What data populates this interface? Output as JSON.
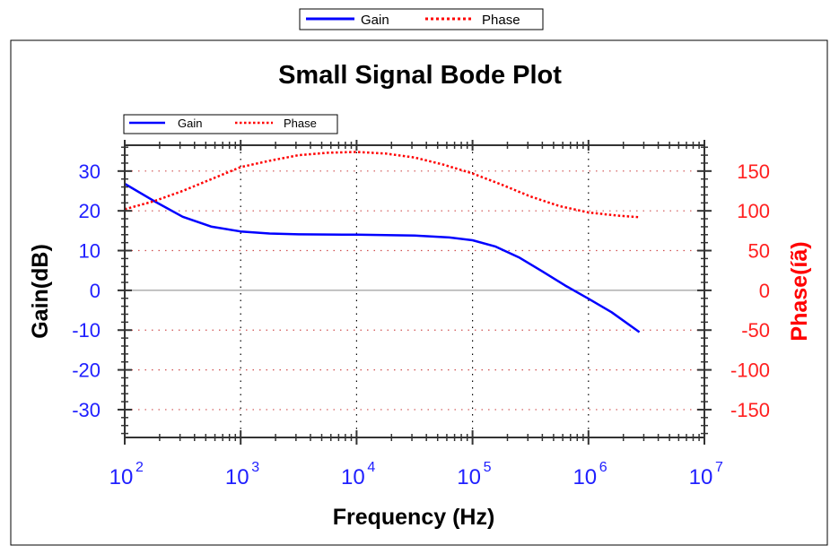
{
  "chart_data": {
    "type": "line",
    "title": "Small Signal Bode Plot",
    "xlabel": "Frequency (Hz)",
    "ylabel": "Gain(dB)",
    "y2label": "Phase(íã)",
    "xscale": "log",
    "xlim": [
      100,
      10000000
    ],
    "ylim": [
      -37,
      36.5
    ],
    "y2lim": [
      -185,
      182.5
    ],
    "x_ticks": [
      {
        "base": "10",
        "exp": "2"
      },
      {
        "base": "10",
        "exp": "3"
      },
      {
        "base": "10",
        "exp": "4"
      },
      {
        "base": "10",
        "exp": "5"
      },
      {
        "base": "10",
        "exp": "6"
      },
      {
        "base": "10",
        "exp": "7"
      }
    ],
    "y_ticks": [
      "30",
      "20",
      "10",
      "0",
      "-10",
      "-20",
      "-30"
    ],
    "y_tick_values": [
      30,
      20,
      10,
      0,
      -10,
      -20,
      -30
    ],
    "y2_ticks": [
      "150",
      "100",
      "50",
      "0",
      "-50",
      "-100",
      "-150"
    ],
    "y2_tick_values": [
      150,
      100,
      50,
      0,
      -50,
      -100,
      -150
    ],
    "grid": true,
    "legend": {
      "placement": "top-left",
      "entries": [
        "Gain",
        "Phase"
      ]
    },
    "outer_legend": {
      "placement": "top-center",
      "entries": [
        "Gain",
        "Phase"
      ]
    },
    "series": [
      {
        "name": "Gain",
        "axis": "left",
        "color": "#0000ff",
        "style": "solid",
        "x": [
          100,
          178,
          316,
          562,
          1000,
          1778,
          3162,
          10000,
          31623,
          63096,
          100000,
          158489,
          251189,
          398107,
          630957,
          1000000,
          1584893,
          2754229
        ],
        "y": [
          26.8,
          22.5,
          18.5,
          16.0,
          14.8,
          14.3,
          14.1,
          14.0,
          13.8,
          13.3,
          12.6,
          11.0,
          8.3,
          4.8,
          1.2,
          -2.1,
          -5.5,
          -10.5
        ]
      },
      {
        "name": "Phase",
        "axis": "right",
        "color": "#ff0000",
        "style": "dotted",
        "x": [
          100,
          178,
          316,
          562,
          1000,
          1778,
          3162,
          5623,
          10000,
          17783,
          31623,
          56234,
          100000,
          177828,
          316228,
          562341,
          1000000,
          1778279,
          2754229
        ],
        "y": [
          102,
          112,
          125,
          140,
          155,
          163,
          170,
          173,
          174,
          172,
          167,
          158,
          147,
          133,
          118,
          106,
          98,
          94,
          92
        ]
      }
    ]
  }
}
